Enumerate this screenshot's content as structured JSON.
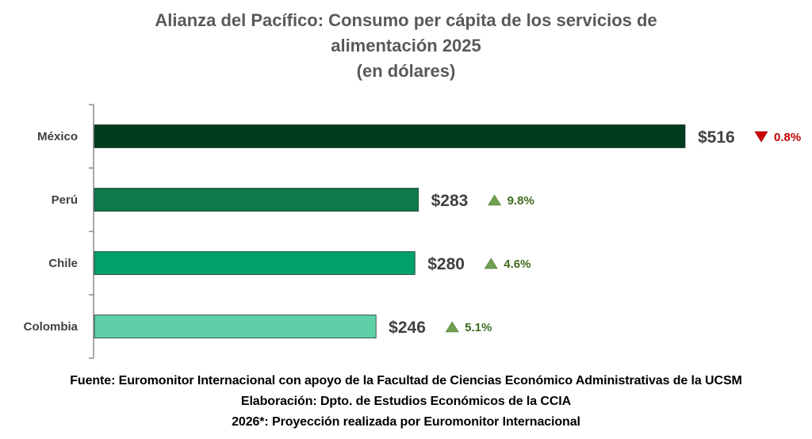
{
  "title_lines": [
    "Alianza del Pacífico: Consumo per cápita de los servicios de",
    "alimentación 2025",
    "(en dólares)"
  ],
  "chart_data": {
    "type": "bar",
    "orientation": "horizontal",
    "categories": [
      "México",
      "Perú",
      "Chile",
      "Colombia"
    ],
    "values": [
      516,
      283,
      280,
      246
    ],
    "value_labels": [
      "$516",
      "$283",
      "$280",
      "$246"
    ],
    "changes": [
      {
        "label": "0.8%",
        "direction": "down"
      },
      {
        "label": "9.8%",
        "direction": "up"
      },
      {
        "label": "4.6%",
        "direction": "up"
      },
      {
        "label": "5.1%",
        "direction": "up"
      }
    ],
    "bar_colors": [
      "#003b1f",
      "#0e7a4d",
      "#00a06b",
      "#5ecfa6"
    ],
    "up_color": "#70a050",
    "down_color": "#cc0000",
    "up_text_color": "#3f6b1f",
    "down_text_color": "#c00000",
    "xlim": [
      0,
      520
    ],
    "grid": false,
    "legend": "none"
  },
  "footer": {
    "line1": "Fuente: Euromonitor Internacional con apoyo de la Facultad de Ciencias Económico Administrativas de la UCSM",
    "line2": "Elaboración: Dpto. de Estudios Económicos de la CCIA",
    "line3": "2026*: Proyección realizada por Euromonitor Internacional"
  }
}
